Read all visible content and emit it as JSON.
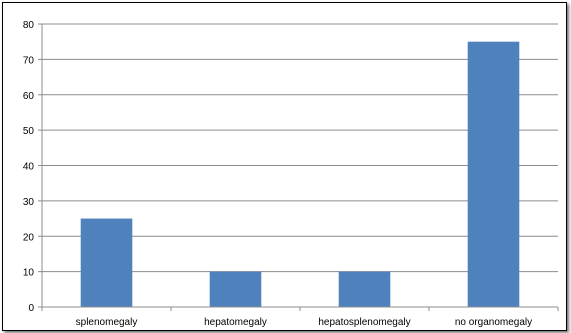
{
  "chart_data": {
    "type": "bar",
    "title": "",
    "xlabel": "",
    "ylabel": "",
    "categories": [
      "splenomegaly",
      "hepatomegaly",
      "hepatosplenomegaly",
      "no organomegaly"
    ],
    "values": [
      25,
      10,
      10,
      75
    ],
    "ylim": [
      0,
      80
    ],
    "yticks": [
      0,
      10,
      20,
      30,
      40,
      50,
      60,
      70,
      80
    ],
    "grid": true,
    "legend": "none",
    "bar_color": "#4F81BD"
  }
}
